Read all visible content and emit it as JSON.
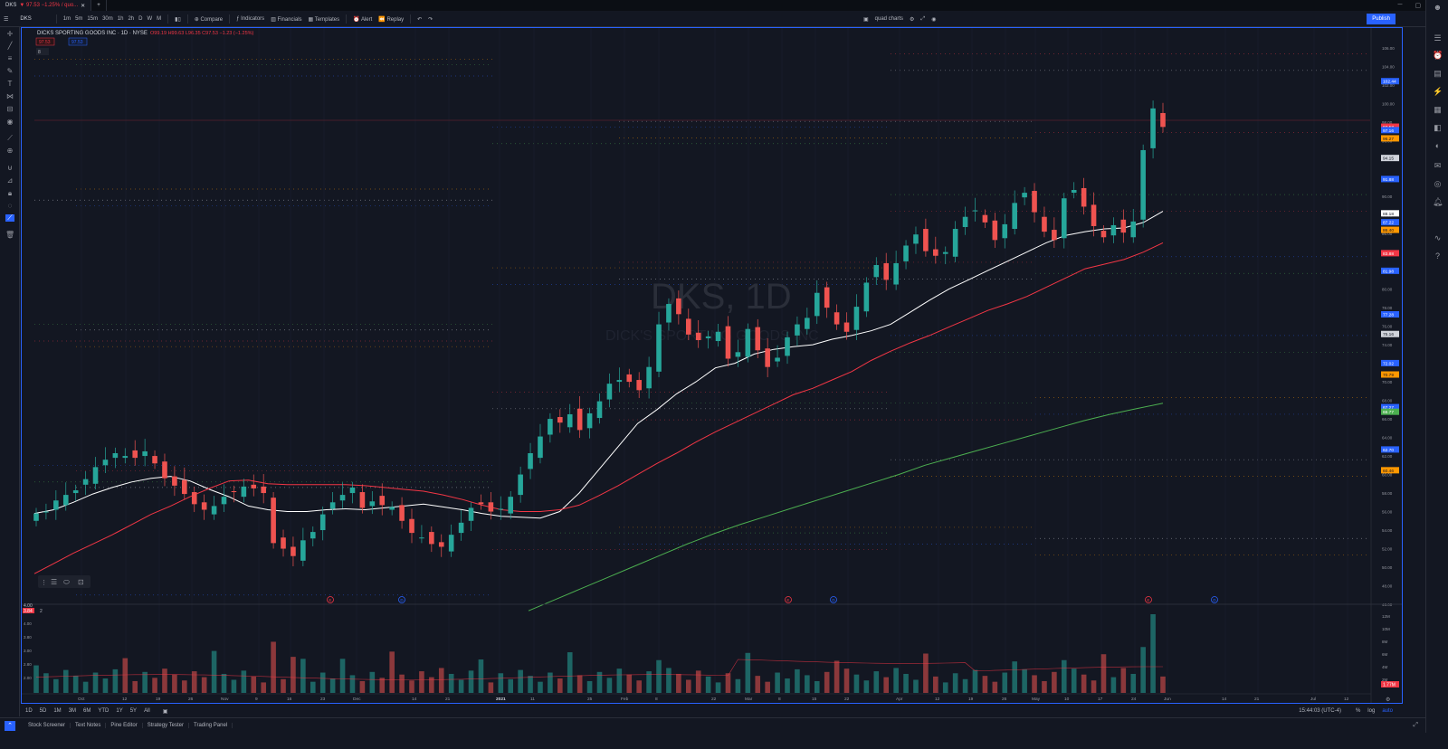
{
  "window": {
    "tab_symbol": "DKS",
    "tab_change": "▼ 97.53 −1.25% / quo...",
    "notification_count": "9"
  },
  "toolbar": {
    "symbol": "DKS",
    "intervals": [
      "1m",
      "5m",
      "15m",
      "30m",
      "1h",
      "2h",
      "D",
      "W",
      "M"
    ],
    "compare": "Compare",
    "indicators": "Indicators",
    "financials": "Financials",
    "templates": "Templates",
    "alert": "Alert",
    "replay": "Replay",
    "layout_name": "quad charts",
    "publish": "Publish"
  },
  "chart": {
    "title": "DICKS SPORTING GOODS INC · 1D · NYSE",
    "ohlc": "O99.19 H99.63 L96.35 C97.53 −1.23 (−1.25%)",
    "bid": "97.53",
    "ask": "97.53",
    "watermark_symbol": "DKS, 1D",
    "watermark_name": "DICK'S SPORTING GOODS INC",
    "collapse_label": "8",
    "price_labels": [
      "106.00",
      "104.00",
      "102.00",
      "100.00",
      "98.00",
      "96.00",
      "94.00",
      "92.00",
      "90.00",
      "88.00",
      "86.00",
      "84.00",
      "82.00",
      "80.00",
      "78.00",
      "76.00",
      "74.00",
      "72.00",
      "70.00",
      "68.00",
      "66.00",
      "64.00",
      "62.00",
      "60.00",
      "58.00",
      "56.00",
      "54.00",
      "52.00",
      "50.00",
      "48.00",
      "46.00"
    ],
    "markers": [
      {
        "label": "102.44",
        "color": "#2962ff"
      },
      {
        "label": "97.53",
        "color": "#f23645"
      },
      {
        "label": "97.16",
        "color": "#2962ff"
      },
      {
        "label": "96.27",
        "color": "#ff9800"
      },
      {
        "label": "94.15",
        "color": "#d1d4dc"
      },
      {
        "label": "91.88",
        "color": "#2962ff"
      },
      {
        "label": "88.18",
        "color": "#ffffff"
      },
      {
        "label": "87.22",
        "color": "#2962ff"
      },
      {
        "label": "86.40",
        "color": "#ff9800"
      },
      {
        "label": "83.88",
        "color": "#f23645"
      },
      {
        "label": "81.98",
        "color": "#2962ff"
      },
      {
        "label": "77.28",
        "color": "#2962ff"
      },
      {
        "label": "75.16",
        "color": "#d1d4dc"
      },
      {
        "label": "72.02",
        "color": "#2962ff"
      },
      {
        "label": "70.79",
        "color": "#ff9800"
      },
      {
        "label": "67.27",
        "color": "#2962ff"
      },
      {
        "label": "66.77",
        "color": "#4caf50"
      },
      {
        "label": "62.70",
        "color": "#2962ff"
      },
      {
        "label": "60.46",
        "color": "#ff9800"
      }
    ],
    "x_labels": [
      "Oct",
      "12",
      "19",
      "26",
      "Nov",
      "9",
      "16",
      "23",
      "Dec",
      "14",
      "21",
      "2021",
      "11",
      "25",
      "Feb",
      "8",
      "22",
      "Mar",
      "8",
      "15",
      "22",
      "Apr",
      "12",
      "19",
      "26",
      "May",
      "10",
      "17",
      "24",
      "Jun",
      "14",
      "21",
      "Jul",
      "12"
    ],
    "time_readout": "15:44:03 (UTC-4)",
    "axis_modes": [
      "%",
      "log",
      "auto"
    ],
    "events": [
      {
        "type": "E",
        "color": "#f23645"
      },
      {
        "type": "D",
        "color": "#2962ff"
      },
      {
        "type": "E",
        "color": "#f23645"
      },
      {
        "type": "D",
        "color": "#2962ff"
      },
      {
        "type": "E",
        "color": "#f23645"
      },
      {
        "type": "D",
        "color": "#2962ff"
      }
    ]
  },
  "volume_pane": {
    "legend_value": "3.84",
    "legend_top": "4.00",
    "collapse_label": "2",
    "left_labels": [
      "4.00",
      "3.80",
      "3.00",
      "2.80",
      "2.00"
    ],
    "right_labels": [
      "12M",
      "10M",
      "8M",
      "6M",
      "4M",
      "2M"
    ],
    "volume_marker": "1.77M"
  },
  "range_bar": {
    "ranges": [
      "1D",
      "5D",
      "1M",
      "3M",
      "6M",
      "YTD",
      "1Y",
      "5Y",
      "All"
    ]
  },
  "bottom_panels": [
    "Stock Screener",
    "Text Notes",
    "Pine Editor",
    "Strategy Tester",
    "Trading Panel"
  ],
  "chart_data": {
    "type": "candlestick",
    "title": "DICKS SPORTING GOODS INC · 1D · NYSE",
    "ylim": [
      46,
      107
    ],
    "moving_averages": [
      {
        "color": "#ffffff",
        "values": [
          55.8,
          56.2,
          57.0,
          57.9,
          58.6,
          59.2,
          59.6,
          59.8,
          59.3,
          58.4,
          57.6,
          56.6,
          56.2,
          56.0,
          56.0,
          56.2,
          56.3,
          56.2,
          56.4,
          56.6,
          56.8,
          56.5,
          56.2,
          55.8,
          55.5,
          55.4,
          55.3,
          56.0,
          58.0,
          60.5,
          63.0,
          65.5,
          67.0,
          68.7,
          70.0,
          71.5,
          72.0,
          73.0,
          73.5,
          73.8,
          74.0,
          74.6,
          75.0,
          75.5,
          76.2,
          77.5,
          78.8,
          80.0,
          81.0,
          82.0,
          83.0,
          84.0,
          85.0,
          85.8,
          86.2,
          86.5,
          86.6,
          87.2,
          88.4
        ]
      },
      {
        "color": "#f23645",
        "values": [
          49.3,
          50.4,
          51.5,
          52.5,
          53.5,
          54.6,
          55.7,
          56.6,
          57.6,
          58.5,
          59.3,
          59.4,
          59.0,
          58.9,
          58.9,
          58.9,
          58.9,
          58.8,
          58.6,
          58.4,
          58.2,
          57.8,
          57.3,
          56.7,
          56.2,
          56.0,
          56.0,
          56.2,
          56.7,
          57.7,
          58.8,
          60.0,
          61.2,
          62.3,
          63.5,
          64.6,
          65.6,
          66.6,
          67.6,
          68.6,
          69.3,
          70.2,
          71.1,
          72.3,
          73.3,
          74.2,
          75.0,
          75.9,
          76.8,
          77.7,
          78.4,
          79.2,
          80.2,
          81.2,
          82.2,
          82.7,
          83.2,
          84.0,
          85.0
        ]
      },
      {
        "color": "#4caf50",
        "values": [
          45.3,
          46.5,
          47.7,
          48.9,
          50.1,
          51.3,
          52.5,
          53.6,
          54.6,
          55.5,
          56.4,
          57.3,
          58.2,
          59.1,
          60.0,
          61.0,
          61.8,
          62.6,
          63.4,
          64.2,
          65.0,
          65.8,
          66.5,
          67.1,
          67.7
        ]
      }
    ]
  }
}
